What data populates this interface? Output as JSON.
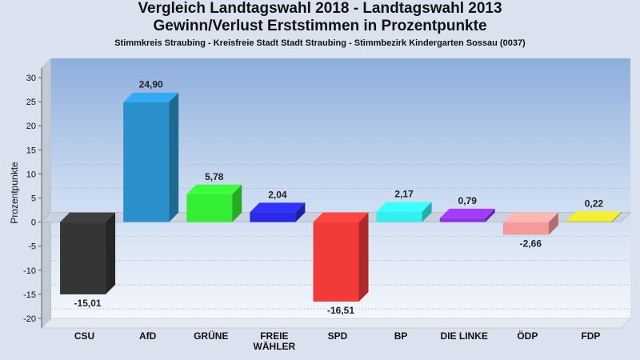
{
  "chart_data": {
    "type": "bar",
    "title": [
      "Vergleich Landtagswahl 2018 - Landtagswahl 2013",
      "Gewinn/Verlust Erststimmen in Prozentpunkte"
    ],
    "subtitle": "Stimmkreis Straubing - Kreisfreie Stadt Stadt Straubing - Stimmbezirk Kindergarten Sossau (0037)",
    "ylabel": "Prozentpunkte",
    "xlabel": "",
    "ylim": [
      -22,
      32
    ],
    "yticks": [
      30,
      25,
      20,
      15,
      10,
      5,
      0,
      -5,
      -10,
      -15,
      -20
    ],
    "grid": true,
    "categories": [
      [
        "CSU"
      ],
      [
        "AfD"
      ],
      [
        "GRÜNE"
      ],
      [
        "FREIE",
        "WÄHLER"
      ],
      [
        "SPD"
      ],
      [
        "BP"
      ],
      [
        "DIE LINKE"
      ],
      [
        "ÖDP"
      ],
      [
        "FDP"
      ]
    ],
    "values": [
      -15.01,
      24.9,
      5.78,
      2.04,
      -16.51,
      2.17,
      0.79,
      -2.66,
      0.22
    ],
    "value_labels": [
      "-15,01",
      "24,90",
      "5,78",
      "2,04",
      "-16,51",
      "2,17",
      "0,79",
      "-2,66",
      "0,22"
    ],
    "colors": [
      "#353535",
      "#2a91cd",
      "#33ee33",
      "#2a2ae6",
      "#f23a3a",
      "#33f0ee",
      "#8a33dd",
      "#f59a9a",
      "#d0cc2a"
    ]
  }
}
